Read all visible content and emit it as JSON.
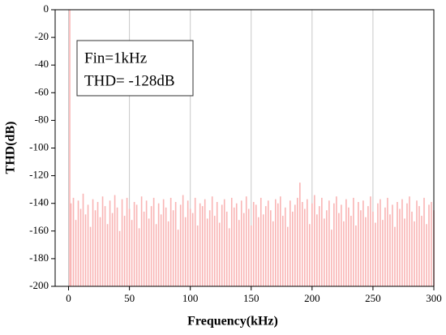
{
  "chart_data": {
    "type": "bar",
    "xlabel": "Frequency(kHz)",
    "ylabel": "THD(dB)",
    "annotations": [
      "Fin=1kHz",
      "THD= -128dB"
    ],
    "color": "#f9b4b4",
    "x": [
      1,
      2,
      4,
      6,
      8,
      10,
      12,
      14,
      16,
      18,
      20,
      22,
      24,
      26,
      28,
      30,
      32,
      34,
      36,
      38,
      40,
      42,
      44,
      46,
      48,
      50,
      52,
      54,
      56,
      58,
      60,
      62,
      64,
      66,
      68,
      70,
      72,
      74,
      76,
      78,
      80,
      82,
      84,
      86,
      88,
      90,
      92,
      94,
      96,
      98,
      100,
      102,
      104,
      106,
      108,
      110,
      112,
      114,
      116,
      118,
      120,
      122,
      124,
      126,
      128,
      130,
      132,
      134,
      136,
      138,
      140,
      142,
      144,
      146,
      148,
      150,
      152,
      154,
      156,
      158,
      160,
      162,
      164,
      166,
      168,
      170,
      172,
      174,
      176,
      178,
      180,
      182,
      184,
      186,
      188,
      190,
      192,
      194,
      196,
      198,
      200,
      202,
      204,
      206,
      208,
      210,
      212,
      214,
      216,
      218,
      220,
      222,
      224,
      226,
      228,
      230,
      232,
      234,
      236,
      238,
      240,
      242,
      244,
      246,
      248,
      250,
      252,
      254,
      256,
      258,
      260,
      262,
      264,
      266,
      268,
      270,
      272,
      274,
      276,
      278,
      280,
      282,
      284,
      286,
      288,
      290,
      292,
      294,
      296,
      298,
      300
    ],
    "values": [
      0,
      -140,
      -136,
      -152,
      -138,
      -144,
      -133,
      -148,
      -141,
      -157,
      -137,
      -145,
      -139,
      -150,
      -135,
      -142,
      -155,
      -138,
      -147,
      -134,
      -143,
      -160,
      -137,
      -149,
      -136,
      -144,
      -152,
      -139,
      -141,
      -158,
      -135,
      -146,
      -138,
      -151,
      -142,
      -136,
      -155,
      -140,
      -148,
      -137,
      -143,
      -153,
      -136,
      -145,
      -139,
      -159,
      -141,
      -134,
      -150,
      -138,
      -144,
      -147,
      -136,
      -156,
      -140,
      -142,
      -137,
      -151,
      -145,
      -135,
      -149,
      -139,
      -154,
      -141,
      -137,
      -146,
      -158,
      -136,
      -143,
      -140,
      -152,
      -138,
      -147,
      -135,
      -144,
      -156,
      -139,
      -141,
      -150,
      -136,
      -148,
      -142,
      -138,
      -145,
      -153,
      -137,
      -140,
      -135,
      -149,
      -143,
      -157,
      -138,
      -146,
      -141,
      -136,
      -125,
      -139,
      -144,
      -137,
      -155,
      -140,
      -134,
      -148,
      -142,
      -136,
      -151,
      -145,
      -138,
      -159,
      -140,
      -135,
      -147,
      -141,
      -153,
      -137,
      -143,
      -149,
      -136,
      -156,
      -139,
      -145,
      -138,
      -150,
      -142,
      -135,
      -146,
      -154,
      -140,
      -137,
      -152,
      -143,
      -136,
      -148,
      -141,
      -157,
      -139,
      -144,
      -137,
      -151,
      -140,
      -135,
      -146,
      -153,
      -138,
      -142,
      -149,
      -136,
      -155,
      -141,
      -139,
      -145
    ],
    "xlim": [
      -11,
      300
    ],
    "ylim": [
      -200,
      0
    ],
    "xticks": [
      0,
      50,
      100,
      150,
      200,
      250,
      300
    ],
    "yticks": [
      -200,
      -180,
      -160,
      -140,
      -120,
      -100,
      -80,
      -60,
      -40,
      -20,
      0
    ],
    "grid": true
  }
}
